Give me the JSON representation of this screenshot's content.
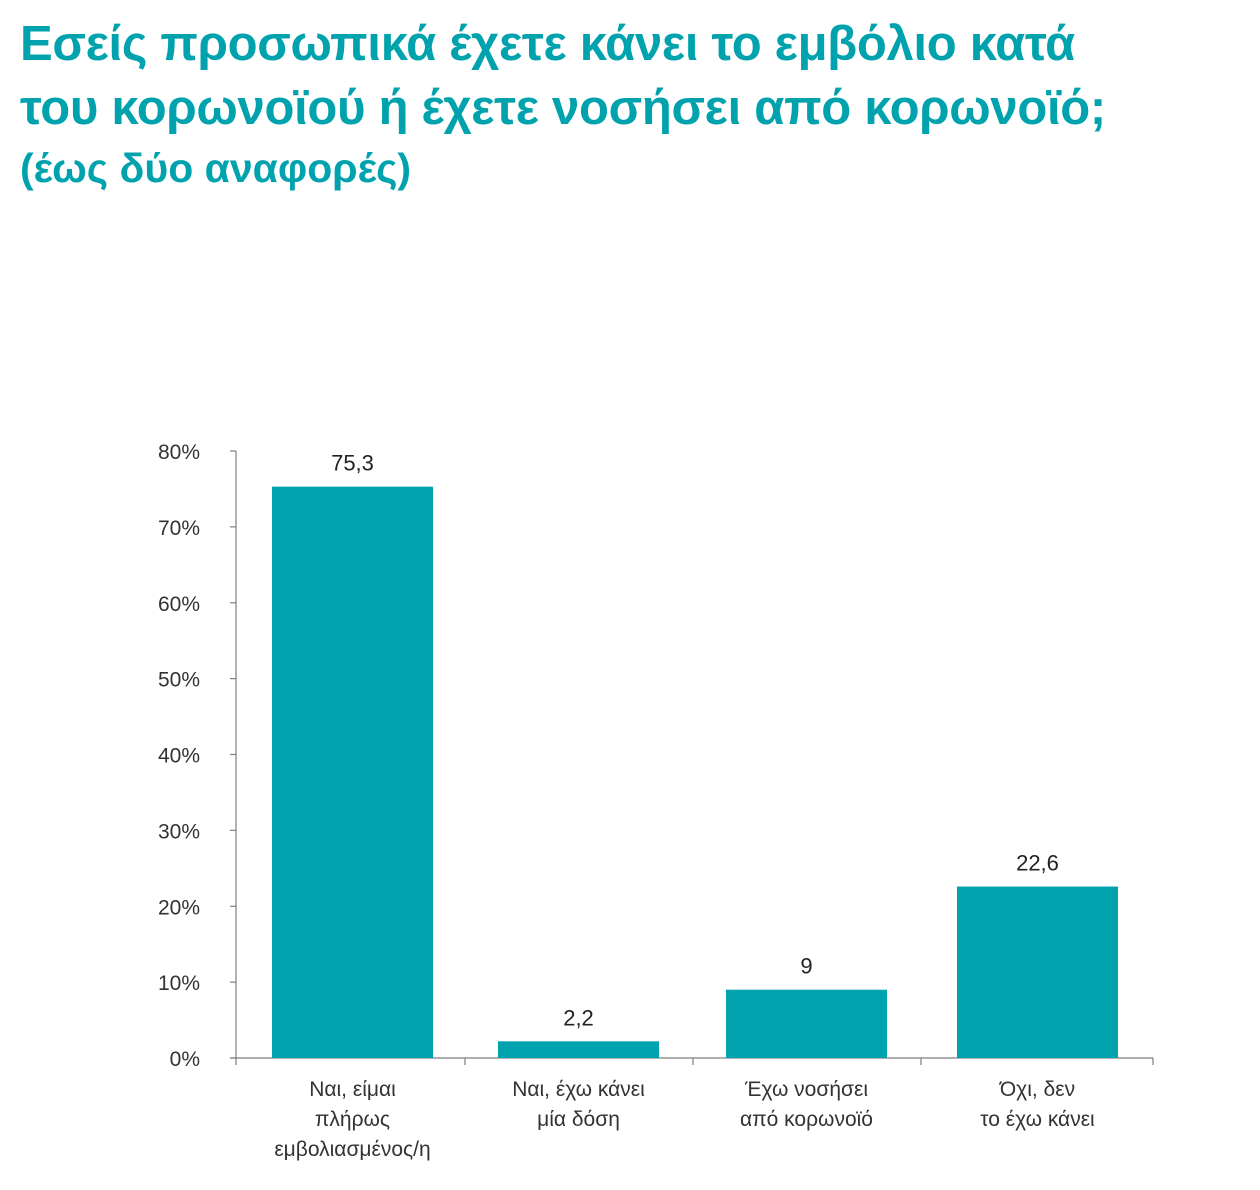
{
  "chart_data": {
    "type": "bar",
    "title_lines": [
      "Εσείς προσωπικά έχετε κάνει το εμβόλιο κατά",
      "του κορωνοϊού ή έχετε νοσήσει από κορωνοϊό;"
    ],
    "subtitle": "(έως δύο αναφορές)",
    "categories": [
      [
        "Ναι, είμαι",
        "πλήρως",
        "εμβολιασμένος/η"
      ],
      [
        "Ναι,  έχω κάνει",
        "μία δόση"
      ],
      [
        "Έχω νοσήσει",
        "από κορωνοϊό"
      ],
      [
        "Όχι, δεν",
        "το έχω κάνει"
      ]
    ],
    "values": [
      75.3,
      2.2,
      9,
      22.6
    ],
    "value_labels": [
      "75,3",
      "2,2",
      "9",
      "22,6"
    ],
    "ylim": [
      0,
      80
    ],
    "yticks": [
      0,
      10,
      20,
      30,
      40,
      50,
      60,
      70,
      80
    ],
    "ytick_labels": [
      "0%",
      "10%",
      "20%",
      "30%",
      "40%",
      "50%",
      "60%",
      "70%",
      "80%"
    ],
    "xlabel": "",
    "ylabel": "",
    "grid": false,
    "legend": false,
    "bar_color": "#00a3ad",
    "axis_color": "#7f7f7f"
  }
}
